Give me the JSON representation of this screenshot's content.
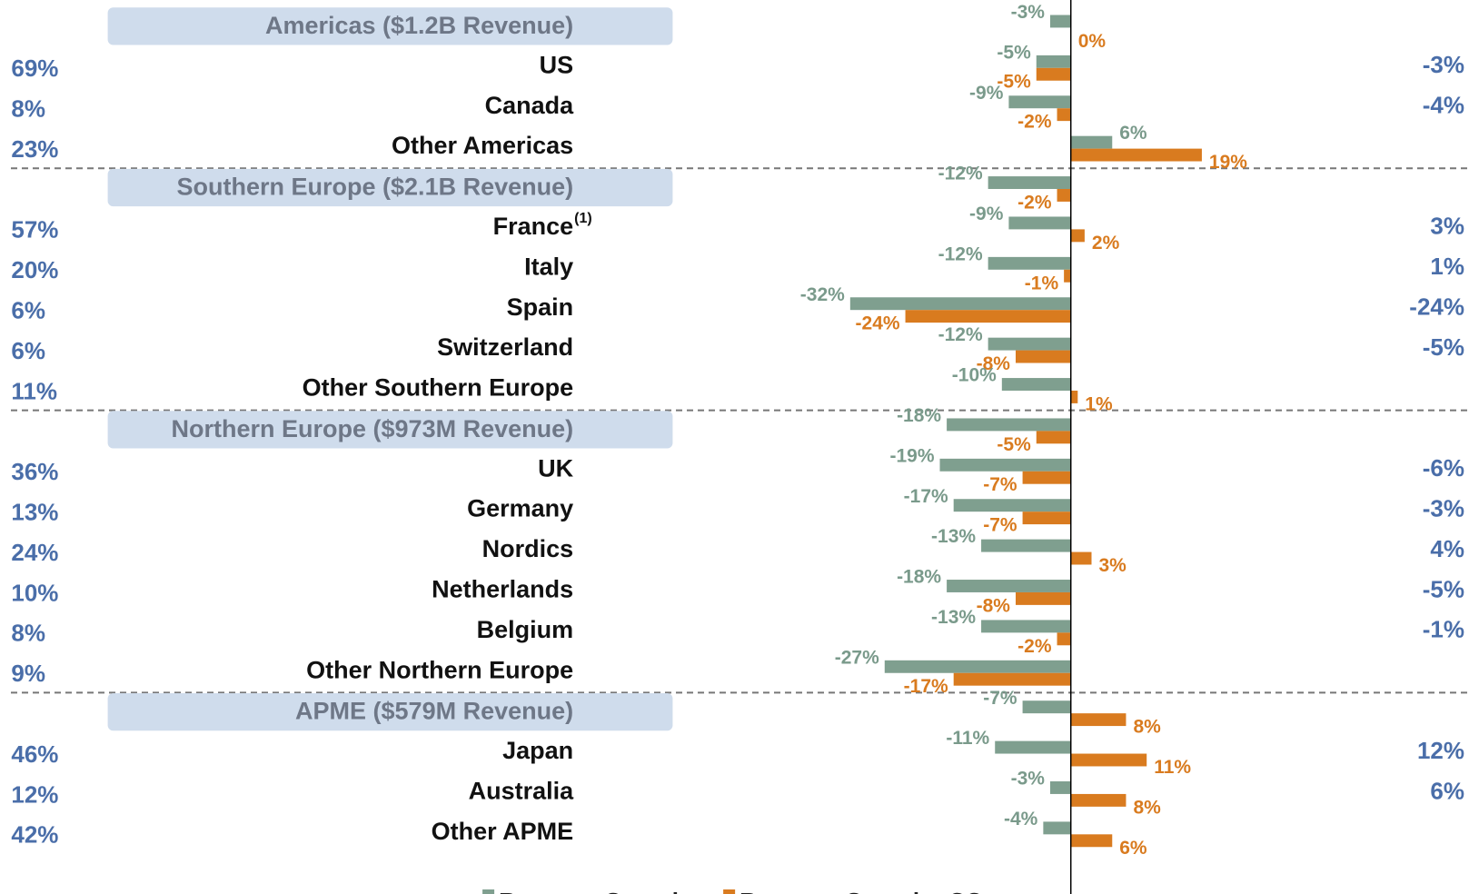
{
  "chart_data": {
    "type": "bar",
    "categories": [
      "Americas ($1.2B Revenue)",
      "US",
      "Canada",
      "Other Americas",
      "Southern Europe ($2.1B Revenue)",
      "France",
      "Italy",
      "Spain",
      "Switzerland",
      "Other Southern Europe",
      "Northern Europe ($973M Revenue)",
      "UK",
      "Germany",
      "Nordics",
      "Netherlands",
      "Belgium",
      "Other Northern Europe",
      "APME ($579M Revenue)",
      "Japan",
      "Australia",
      "Other APME"
    ],
    "headers": [
      true,
      false,
      false,
      false,
      true,
      false,
      false,
      false,
      false,
      false,
      true,
      false,
      false,
      false,
      false,
      false,
      false,
      true,
      false,
      false,
      false
    ],
    "notes": [
      null,
      null,
      null,
      null,
      null,
      "(1)",
      null,
      null,
      null,
      null,
      null,
      null,
      null,
      null,
      null,
      null,
      null,
      null,
      null,
      null,
      null
    ],
    "series": [
      {
        "name": "Revenue Growth",
        "color": "#7f9f8f",
        "values": [
          -3,
          -5,
          -9,
          6,
          -12,
          -9,
          -12,
          -32,
          -12,
          -10,
          -18,
          -19,
          -17,
          -13,
          -18,
          -13,
          -27,
          -7,
          -11,
          -3,
          -4
        ],
        "value_labels": [
          "-3%",
          "-5%",
          "-9%",
          "6%",
          "-12%",
          "-9%",
          "-12%",
          "-32%",
          "-12%",
          "-10%",
          "-18%",
          "-19%",
          "-17%",
          "-13%",
          "-18%",
          "-13%",
          "-27%",
          "-7%",
          "-11%",
          "-3%",
          "-4%"
        ]
      },
      {
        "name": "Revenue Growth - CC",
        "color": "#d97b1f",
        "values": [
          0,
          -5,
          -2,
          19,
          -2,
          2,
          -1,
          -24,
          -8,
          1,
          -5,
          -7,
          -7,
          3,
          -8,
          -2,
          -17,
          8,
          11,
          8,
          6
        ],
        "value_labels": [
          "0%",
          "-5%",
          "-2%",
          "19%",
          "-2%",
          "2%",
          "-1%",
          "-24%",
          "-8%",
          "1%",
          "-5%",
          "-7%",
          "-7%",
          "3%",
          "-8%",
          "-2%",
          "-17%",
          "8%",
          "11%",
          "8%",
          "6%"
        ]
      }
    ],
    "share": {
      "values": [
        null,
        69,
        8,
        23,
        null,
        57,
        20,
        6,
        6,
        11,
        null,
        36,
        13,
        24,
        10,
        8,
        9,
        null,
        46,
        12,
        42
      ],
      "value_labels": [
        null,
        "69%",
        "8%",
        "23%",
        null,
        "57%",
        "20%",
        "6%",
        "6%",
        "11%",
        null,
        "36%",
        "13%",
        "24%",
        "10%",
        "8%",
        "9%",
        null,
        "46%",
        "12%",
        "42%"
      ]
    },
    "right": {
      "values": [
        null,
        -3,
        -4,
        null,
        null,
        3,
        1,
        -24,
        -5,
        null,
        null,
        -6,
        -3,
        4,
        -5,
        -1,
        null,
        null,
        12,
        6,
        null
      ],
      "value_labels": [
        null,
        "-3%",
        "-4%",
        null,
        null,
        "3%",
        "1%",
        "-24%",
        "-5%",
        null,
        null,
        "-6%",
        "-3%",
        "4%",
        "-5%",
        "-1%",
        null,
        null,
        "12%",
        "6%",
        null
      ]
    }
  }
}
